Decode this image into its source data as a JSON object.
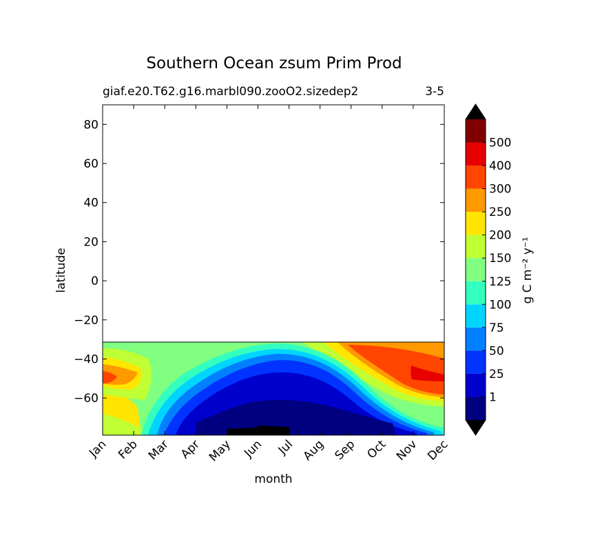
{
  "chart_data": {
    "type": "heatmap",
    "title": "Southern Ocean zsum Prim Prod",
    "subtitle_left": "giaf.e20.T62.g16.marbl090.zooO2.sizedep2",
    "subtitle_right": "3-5",
    "xlabel": "month",
    "ylabel": "latitude",
    "x_categories": [
      "Jan",
      "Feb",
      "Mar",
      "Apr",
      "May",
      "Jun",
      "Jul",
      "Aug",
      "Sep",
      "Oct",
      "Nov",
      "Dec"
    ],
    "yticks": [
      80,
      60,
      40,
      20,
      0,
      -20,
      -40,
      -60
    ],
    "yticklabels": [
      "80",
      "60",
      "40",
      "20",
      "0",
      "−20",
      "−40",
      "−60"
    ],
    "ylim": [
      -79,
      90
    ],
    "data_lat_range": [
      -79,
      -32
    ],
    "colorbar": {
      "label": "g C m⁻² y⁻¹",
      "levels": [
        0,
        1,
        25,
        50,
        75,
        100,
        125,
        150,
        200,
        250,
        300,
        400,
        500,
        600
      ],
      "ticklabels": [
        "1",
        "25",
        "50",
        "75",
        "100",
        "125",
        "150",
        "200",
        "250",
        "300",
        "400",
        "500"
      ],
      "colors": [
        "#000080",
        "#0000cd",
        "#0033ff",
        "#0080ff",
        "#00d5ff",
        "#33ffbf",
        "#80ff80",
        "#bfff33",
        "#ffe500",
        "#ff9900",
        "#ff4500",
        "#e60000",
        "#800000"
      ],
      "under_color": "#000000",
      "over_color": "#000000",
      "extend": "both"
    },
    "grid": false,
    "legend": "colorbar-right"
  }
}
